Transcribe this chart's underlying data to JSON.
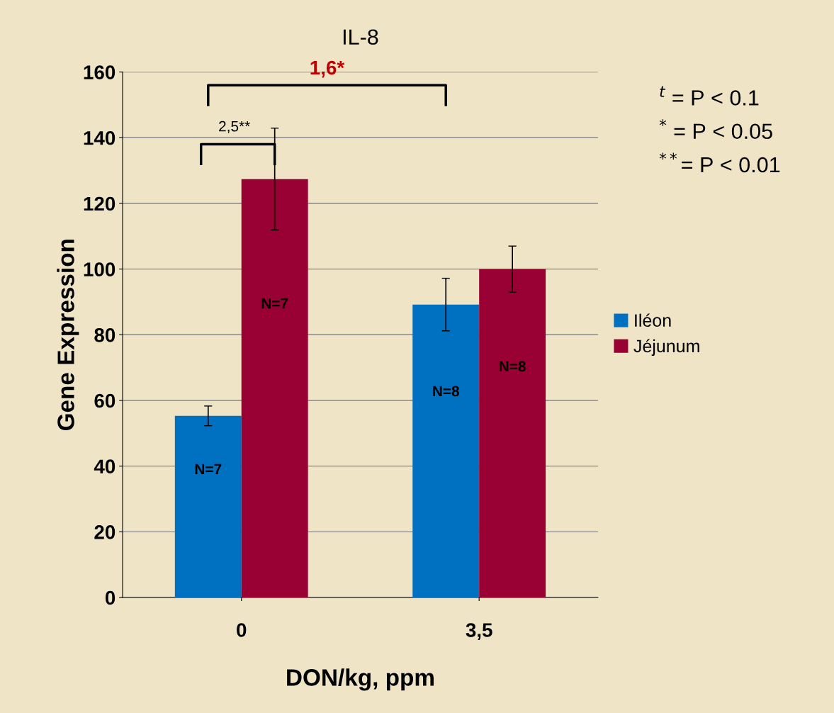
{
  "chart_data": {
    "type": "bar",
    "title": "IL-8",
    "xlabel": "DON/kg, ppm",
    "ylabel": "Gene Expression",
    "categories": [
      "0",
      "3,5"
    ],
    "series": [
      {
        "name": "Iléon",
        "color": "#0070c0",
        "values": [
          55.3,
          89.2
        ],
        "errors": [
          3,
          8
        ]
      },
      {
        "name": "Jéjunum",
        "color": "#990033",
        "values": [
          127.4,
          100
        ],
        "errors": [
          15.5,
          7
        ]
      }
    ],
    "ylim": [
      0,
      160
    ],
    "yticks": [
      0,
      20,
      40,
      60,
      80,
      100,
      120,
      140,
      160
    ],
    "grid": "y",
    "legend": "right",
    "annotations": [
      "1,6*",
      "2,5**",
      "$^{t}$ = P < 0.1",
      "$^{*}$ = P < 0.05",
      "$^{**}$= P < 0.01",
      "N=7",
      "N=8",
      "N=7",
      "N=8"
    ]
  }
}
